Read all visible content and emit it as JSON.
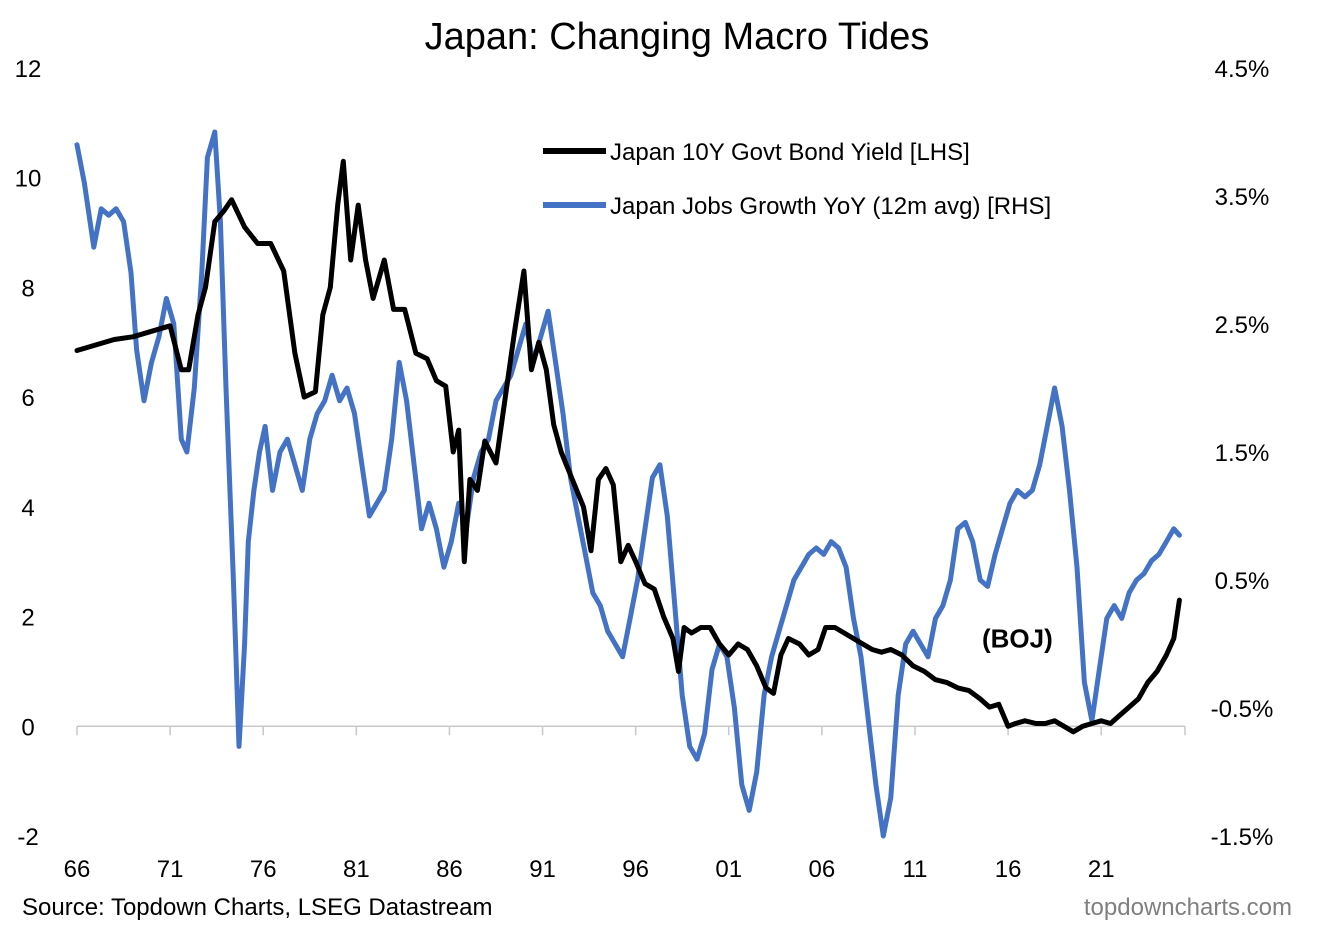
{
  "chart_data": {
    "type": "line",
    "title": "Japan: Changing Macro Tides",
    "x_tick_labels": [
      "66",
      "71",
      "76",
      "81",
      "86",
      "91",
      "96",
      "01",
      "06",
      "11",
      "16",
      "21"
    ],
    "x_tick_years": [
      1966,
      1971,
      1976,
      1981,
      1986,
      1991,
      1996,
      2001,
      2006,
      2011,
      2016,
      2021
    ],
    "xlim": [
      1966,
      2025.5
    ],
    "left_axis": {
      "ylim": [
        -2,
        12
      ],
      "tick_values": [
        -2,
        0,
        2,
        4,
        6,
        8,
        10,
        12
      ],
      "tick_labels": [
        "-2",
        "0",
        "2",
        "4",
        "6",
        "8",
        "10",
        "12"
      ]
    },
    "right_axis": {
      "ylim": [
        -1.5,
        4.5
      ],
      "tick_values": [
        -1.5,
        -0.5,
        0.5,
        1.5,
        2.5,
        3.5,
        4.5
      ],
      "tick_labels": [
        "-1.5%",
        "-0.5%",
        "0.5%",
        "1.5%",
        "2.5%",
        "3.5%",
        "4.5%"
      ]
    },
    "legend_position": "top-right",
    "series": [
      {
        "name": "Japan 10Y Govt Bond Yield [LHS]",
        "axis": "left",
        "color": "#000000",
        "x": [
          1966.0,
          1967.0,
          1968.0,
          1969.0,
          1970.0,
          1971.0,
          1971.6,
          1972.0,
          1972.5,
          1972.9,
          1973.4,
          1973.9,
          1974.3,
          1975.0,
          1975.7,
          1976.4,
          1977.1,
          1977.7,
          1978.2,
          1978.8,
          1979.2,
          1979.6,
          1980.0,
          1980.3,
          1980.7,
          1981.1,
          1981.5,
          1981.9,
          1982.5,
          1983.0,
          1983.6,
          1984.2,
          1984.8,
          1985.3,
          1985.8,
          1986.2,
          1986.5,
          1986.8,
          1987.1,
          1987.5,
          1987.9,
          1988.5,
          1989.0,
          1989.5,
          1990.0,
          1990.4,
          1990.8,
          1991.2,
          1991.6,
          1992.0,
          1992.6,
          1993.2,
          1993.6,
          1994.0,
          1994.4,
          1994.8,
          1995.2,
          1995.6,
          1996.0,
          1996.5,
          1997.0,
          1997.5,
          1998.0,
          1998.3,
          1998.6,
          1999.0,
          1999.5,
          2000.0,
          2000.5,
          2001.0,
          2001.5,
          2002.0,
          2002.5,
          2003.0,
          2003.4,
          2003.8,
          2004.2,
          2004.8,
          2005.3,
          2005.8,
          2006.2,
          2006.7,
          2007.2,
          2007.7,
          2008.2,
          2008.7,
          2009.2,
          2009.7,
          2010.3,
          2010.9,
          2011.5,
          2012.1,
          2012.7,
          2013.3,
          2013.9,
          2014.5,
          2015.0,
          2015.5,
          2016.0,
          2016.4,
          2016.9,
          2017.5,
          2018.0,
          2018.5,
          2019.0,
          2019.5,
          2020.0,
          2020.5,
          2021.0,
          2021.5,
          2022.0,
          2022.5,
          2023.0,
          2023.5,
          2024.0,
          2024.5,
          2024.9,
          2025.2
        ],
        "values": [
          6.85,
          6.95,
          7.05,
          7.1,
          7.2,
          7.3,
          6.5,
          6.5,
          7.5,
          8.0,
          9.2,
          9.4,
          9.6,
          9.1,
          8.8,
          8.8,
          8.3,
          6.8,
          6.0,
          6.1,
          7.5,
          8.0,
          9.5,
          10.3,
          8.5,
          9.5,
          8.5,
          7.8,
          8.5,
          7.6,
          7.6,
          6.8,
          6.7,
          6.3,
          6.2,
          5.0,
          5.4,
          3.0,
          4.5,
          4.3,
          5.2,
          4.8,
          6.0,
          7.2,
          8.3,
          6.5,
          7.0,
          6.5,
          5.5,
          5.0,
          4.5,
          4.0,
          3.2,
          4.5,
          4.7,
          4.4,
          3.0,
          3.3,
          3.0,
          2.6,
          2.5,
          2.0,
          1.6,
          1.0,
          1.8,
          1.7,
          1.8,
          1.8,
          1.5,
          1.3,
          1.5,
          1.4,
          1.1,
          0.7,
          0.6,
          1.3,
          1.6,
          1.5,
          1.3,
          1.4,
          1.8,
          1.8,
          1.7,
          1.6,
          1.5,
          1.4,
          1.35,
          1.4,
          1.3,
          1.1,
          1.0,
          0.85,
          0.8,
          0.7,
          0.65,
          0.5,
          0.35,
          0.4,
          0.0,
          0.05,
          0.1,
          0.05,
          0.05,
          0.1,
          0.0,
          -0.1,
          0.0,
          0.05,
          0.1,
          0.05,
          0.2,
          0.35,
          0.5,
          0.8,
          1.0,
          1.3,
          1.6,
          2.3
        ]
      },
      {
        "name": "Japan Jobs Growth YoY (12m avg) [RHS]",
        "axis": "right",
        "color": "#4472C4",
        "x": [
          1966.0,
          1966.4,
          1966.9,
          1967.3,
          1967.7,
          1968.1,
          1968.5,
          1968.9,
          1969.2,
          1969.6,
          1970.0,
          1970.4,
          1970.8,
          1971.2,
          1971.6,
          1971.9,
          1972.3,
          1972.7,
          1973.0,
          1973.4,
          1973.7,
          1974.0,
          1974.4,
          1974.7,
          1975.0,
          1975.2,
          1975.5,
          1975.8,
          1976.1,
          1976.5,
          1976.9,
          1977.3,
          1977.7,
          1978.1,
          1978.5,
          1978.9,
          1979.3,
          1979.7,
          1980.1,
          1980.5,
          1980.9,
          1981.3,
          1981.7,
          1982.1,
          1982.5,
          1982.9,
          1983.3,
          1983.7,
          1984.1,
          1984.5,
          1984.9,
          1985.3,
          1985.7,
          1986.1,
          1986.5,
          1986.9,
          1987.3,
          1987.7,
          1988.1,
          1988.5,
          1988.9,
          1989.3,
          1989.7,
          1990.1,
          1990.5,
          1990.9,
          1991.3,
          1991.7,
          1992.1,
          1992.5,
          1992.9,
          1993.3,
          1993.7,
          1994.1,
          1994.5,
          1994.9,
          1995.3,
          1995.7,
          1996.1,
          1996.5,
          1996.9,
          1997.3,
          1997.7,
          1998.1,
          1998.5,
          1998.9,
          1999.3,
          1999.7,
          2000.1,
          2000.5,
          2000.9,
          2001.3,
          2001.7,
          2002.1,
          2002.5,
          2002.9,
          2003.3,
          2003.7,
          2004.1,
          2004.5,
          2004.9,
          2005.3,
          2005.7,
          2006.1,
          2006.5,
          2006.9,
          2007.3,
          2007.7,
          2008.1,
          2008.5,
          2008.9,
          2009.3,
          2009.7,
          2010.1,
          2010.5,
          2010.9,
          2011.3,
          2011.7,
          2012.1,
          2012.5,
          2012.9,
          2013.3,
          2013.7,
          2014.1,
          2014.5,
          2014.9,
          2015.3,
          2015.7,
          2016.1,
          2016.5,
          2016.9,
          2017.3,
          2017.7,
          2018.1,
          2018.5,
          2018.9,
          2019.3,
          2019.7,
          2020.1,
          2020.5,
          2020.9,
          2021.3,
          2021.7,
          2022.1,
          2022.5,
          2022.9,
          2023.3,
          2023.7,
          2024.1,
          2024.5,
          2024.9,
          2025.2
        ],
        "values": [
          3.9,
          3.6,
          3.1,
          3.4,
          3.35,
          3.4,
          3.3,
          2.9,
          2.3,
          1.9,
          2.2,
          2.4,
          2.7,
          2.5,
          1.6,
          1.5,
          2.0,
          2.9,
          3.8,
          4.0,
          3.3,
          2.0,
          0.5,
          -0.8,
          0.0,
          0.8,
          1.2,
          1.5,
          1.7,
          1.2,
          1.5,
          1.6,
          1.4,
          1.2,
          1.6,
          1.8,
          1.9,
          2.1,
          1.9,
          2.0,
          1.8,
          1.4,
          1.0,
          1.1,
          1.2,
          1.6,
          2.2,
          1.9,
          1.4,
          0.9,
          1.1,
          0.9,
          0.6,
          0.8,
          1.1,
          0.9,
          1.3,
          1.5,
          1.6,
          1.9,
          2.0,
          2.1,
          2.3,
          2.5,
          2.2,
          2.4,
          2.6,
          2.2,
          1.8,
          1.3,
          1.0,
          0.7,
          0.4,
          0.3,
          0.1,
          0.0,
          -0.1,
          0.2,
          0.5,
          0.9,
          1.3,
          1.4,
          1.0,
          0.3,
          -0.4,
          -0.8,
          -0.9,
          -0.7,
          -0.2,
          0.0,
          -0.1,
          -0.5,
          -1.1,
          -1.3,
          -1.0,
          -0.4,
          -0.1,
          0.1,
          0.3,
          0.5,
          0.6,
          0.7,
          0.75,
          0.7,
          0.8,
          0.75,
          0.6,
          0.2,
          -0.1,
          -0.6,
          -1.1,
          -1.5,
          -1.2,
          -0.4,
          0.0,
          0.1,
          0.0,
          -0.1,
          0.2,
          0.3,
          0.5,
          0.9,
          0.95,
          0.8,
          0.5,
          0.45,
          0.7,
          0.9,
          1.1,
          1.2,
          1.15,
          1.2,
          1.4,
          1.7,
          2.0,
          1.7,
          1.2,
          0.6,
          -0.3,
          -0.6,
          -0.2,
          0.2,
          0.3,
          0.2,
          0.4,
          0.5,
          0.55,
          0.65,
          0.7,
          0.8,
          0.9,
          0.85
        ]
      }
    ],
    "annotations": [
      {
        "text": "(BOJ)",
        "x": 2016.5,
        "y_left": 1.6
      }
    ],
    "source": "Source: Topdown Charts, LSEG Datastream",
    "watermark": "topdowncharts.com"
  }
}
